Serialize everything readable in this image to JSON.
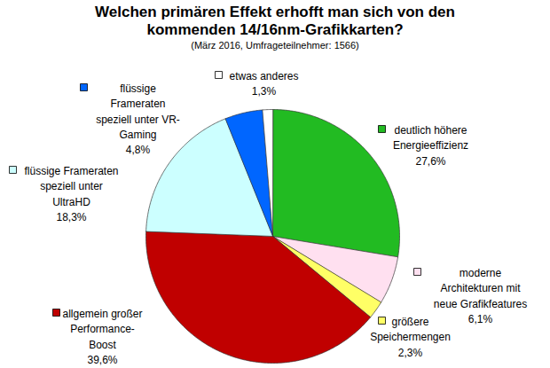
{
  "chart_data": {
    "type": "pie",
    "title": "Welchen primären Effekt erhofft man sich von den kommenden 14/16nm-Grafikkarten?",
    "subtitle": "(März 2016, Umfrageteilnehmer: 1566)",
    "categories": [
      "deutlich höhere Energieeffizienz",
      "moderne Architekturen mit neue Grafikfeatures",
      "größere Speichermengen",
      "allgemein großer Performance-Boost",
      "flüssige Frameraten speziell unter UltraHD",
      "flüssige Frameraten speziell unter VR-Gaming",
      "etwas anderes"
    ],
    "values": [
      27.6,
      6.1,
      2.3,
      39.6,
      18.3,
      4.8,
      1.3
    ],
    "value_labels": [
      "27,6%",
      "6,1%",
      "2,3%",
      "39,6%",
      "18,3%",
      "4,8%",
      "1,3%"
    ],
    "colors": [
      "#22BB22",
      "#FFE0F0",
      "#FFFF66",
      "#C00000",
      "#CCFFFF",
      "#0066FF",
      "#FFFFFF"
    ],
    "data_labels": true
  }
}
